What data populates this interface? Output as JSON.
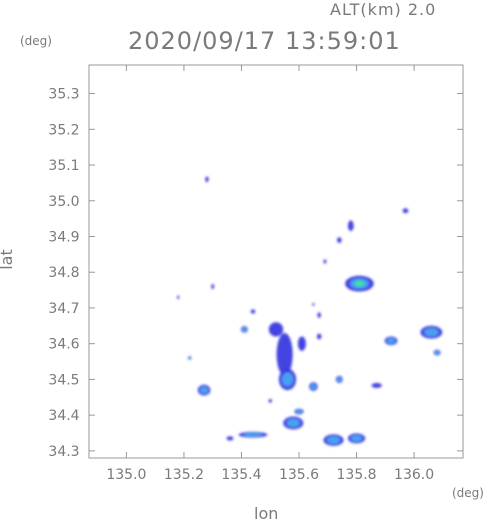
{
  "header": {
    "alt_label": "ALT(km)  2.0",
    "timestamp": "2020/09/17 13:59:01"
  },
  "chart_data": {
    "type": "heatmap",
    "title": "2020/09/17 13:59:01",
    "xlabel": "lon",
    "ylabel": "lat",
    "x_unit": "(deg)",
    "y_unit": "(deg)",
    "xlim": [
      134.87,
      136.17
    ],
    "ylim": [
      34.28,
      35.38
    ],
    "x_ticks": [
      135.0,
      135.2,
      135.4,
      135.6,
      135.8,
      136.0
    ],
    "x_tick_labels": [
      "135.0",
      "135.2",
      "135.4",
      "135.6",
      "135.8",
      "136.0"
    ],
    "y_ticks": [
      34.3,
      34.4,
      34.5,
      34.6,
      34.7,
      34.8,
      34.9,
      35.0,
      35.1,
      35.2,
      35.3
    ],
    "y_tick_labels": [
      "34.3",
      "34.4",
      "34.5",
      "34.6",
      "34.7",
      "34.8",
      "34.9",
      "35.0",
      "35.1",
      "35.2",
      "35.3"
    ],
    "grid": false,
    "colors": {
      "low": "#3a3ae0",
      "mid": "#4aa0f0",
      "high": "#44e0a0",
      "peak": "#88f088"
    },
    "echoes": [
      {
        "lon": 135.81,
        "lat": 34.768,
        "rx": 0.05,
        "ry": 0.022,
        "level": "high"
      },
      {
        "lon": 136.06,
        "lat": 34.632,
        "rx": 0.038,
        "ry": 0.018,
        "level": "mid"
      },
      {
        "lon": 135.92,
        "lat": 34.608,
        "rx": 0.022,
        "ry": 0.012,
        "level": "mid"
      },
      {
        "lon": 136.08,
        "lat": 34.575,
        "rx": 0.012,
        "ry": 0.008,
        "level": "mid"
      },
      {
        "lon": 135.97,
        "lat": 34.972,
        "rx": 0.01,
        "ry": 0.007,
        "level": "low"
      },
      {
        "lon": 135.87,
        "lat": 34.483,
        "rx": 0.018,
        "ry": 0.007,
        "level": "low"
      },
      {
        "lon": 135.72,
        "lat": 34.33,
        "rx": 0.035,
        "ry": 0.016,
        "level": "mid"
      },
      {
        "lon": 135.8,
        "lat": 34.335,
        "rx": 0.03,
        "ry": 0.014,
        "level": "mid"
      },
      {
        "lon": 135.58,
        "lat": 34.378,
        "rx": 0.035,
        "ry": 0.018,
        "level": "mid"
      },
      {
        "lon": 135.6,
        "lat": 34.41,
        "rx": 0.016,
        "ry": 0.008,
        "level": "mid"
      },
      {
        "lon": 135.27,
        "lat": 34.47,
        "rx": 0.022,
        "ry": 0.015,
        "level": "mid"
      },
      {
        "lon": 135.22,
        "lat": 34.56,
        "rx": 0.006,
        "ry": 0.005,
        "level": "high"
      },
      {
        "lon": 135.55,
        "lat": 34.57,
        "rx": 0.028,
        "ry": 0.06,
        "level": "low"
      },
      {
        "lon": 135.56,
        "lat": 34.5,
        "rx": 0.03,
        "ry": 0.03,
        "level": "mid"
      },
      {
        "lon": 135.52,
        "lat": 34.64,
        "rx": 0.025,
        "ry": 0.02,
        "level": "low"
      },
      {
        "lon": 135.61,
        "lat": 34.6,
        "rx": 0.014,
        "ry": 0.02,
        "level": "low"
      },
      {
        "lon": 135.65,
        "lat": 34.48,
        "rx": 0.015,
        "ry": 0.012,
        "level": "mid"
      },
      {
        "lon": 135.74,
        "lat": 34.5,
        "rx": 0.012,
        "ry": 0.01,
        "level": "mid"
      },
      {
        "lon": 135.44,
        "lat": 34.345,
        "rx": 0.05,
        "ry": 0.008,
        "level": "mid"
      },
      {
        "lon": 135.36,
        "lat": 34.335,
        "rx": 0.012,
        "ry": 0.006,
        "level": "low"
      },
      {
        "lon": 135.41,
        "lat": 34.64,
        "rx": 0.012,
        "ry": 0.009,
        "level": "mid"
      },
      {
        "lon": 135.44,
        "lat": 34.69,
        "rx": 0.008,
        "ry": 0.006,
        "level": "low"
      },
      {
        "lon": 135.78,
        "lat": 34.93,
        "rx": 0.01,
        "ry": 0.015,
        "level": "low"
      },
      {
        "lon": 135.74,
        "lat": 34.89,
        "rx": 0.008,
        "ry": 0.008,
        "level": "low"
      },
      {
        "lon": 135.3,
        "lat": 34.76,
        "rx": 0.005,
        "ry": 0.007,
        "level": "low"
      },
      {
        "lon": 135.18,
        "lat": 34.73,
        "rx": 0.004,
        "ry": 0.005,
        "level": "low"
      },
      {
        "lon": 135.28,
        "lat": 35.06,
        "rx": 0.006,
        "ry": 0.008,
        "level": "low"
      },
      {
        "lon": 135.69,
        "lat": 34.83,
        "rx": 0.005,
        "ry": 0.006,
        "level": "low"
      },
      {
        "lon": 135.67,
        "lat": 34.68,
        "rx": 0.006,
        "ry": 0.008,
        "level": "low"
      },
      {
        "lon": 135.67,
        "lat": 34.62,
        "rx": 0.008,
        "ry": 0.008,
        "level": "low"
      },
      {
        "lon": 135.5,
        "lat": 34.44,
        "rx": 0.006,
        "ry": 0.005,
        "level": "low"
      },
      {
        "lon": 135.65,
        "lat": 34.71,
        "rx": 0.004,
        "ry": 0.004,
        "level": "low"
      }
    ]
  }
}
